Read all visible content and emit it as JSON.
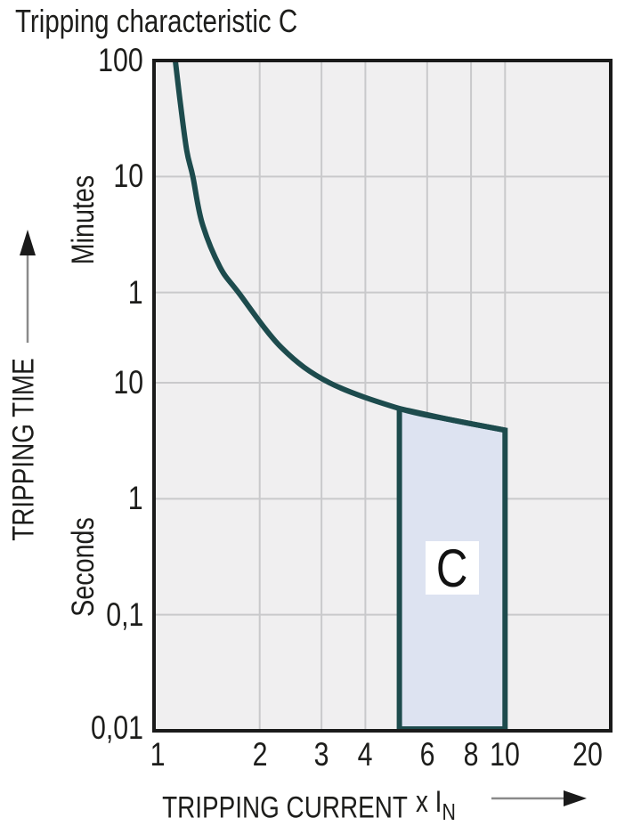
{
  "title": "Tripping characteristic C",
  "y_axis": {
    "label": "TRIPPING TIME",
    "unit_top": "Minutes",
    "unit_bottom": "Seconds"
  },
  "x_axis": {
    "label": "TRIPPING CURRENT",
    "multiplier": "x I",
    "multiplier_sub": "N"
  },
  "chart_data": {
    "type": "line",
    "title": "Tripping characteristic C",
    "xlabel": "TRIPPING CURRENT x IN",
    "ylabel": "TRIPPING TIME",
    "x_scale": "log",
    "y_scale": "log",
    "xlim": [
      1,
      20
    ],
    "ylim_seconds": [
      0.01,
      6000
    ],
    "grid": true,
    "x_ticks": [
      {
        "value": 1,
        "label": "1"
      },
      {
        "value": 2,
        "label": "2"
      },
      {
        "value": 3,
        "label": "3"
      },
      {
        "value": 4,
        "label": "4"
      },
      {
        "value": 6,
        "label": "6"
      },
      {
        "value": 8,
        "label": "8"
      },
      {
        "value": 10,
        "label": "10"
      },
      {
        "value": 20,
        "label": "20"
      }
    ],
    "y_ticks": [
      {
        "seconds": 6000,
        "label": "100",
        "unit": "Minutes"
      },
      {
        "seconds": 600,
        "label": "10",
        "unit": "Minutes"
      },
      {
        "seconds": 60,
        "label": "1",
        "unit": "Minutes"
      },
      {
        "seconds": 10,
        "label": "10",
        "unit": "Seconds"
      },
      {
        "seconds": 1,
        "label": "1",
        "unit": "Seconds"
      },
      {
        "seconds": 0.1,
        "label": "0,1",
        "unit": "Seconds"
      },
      {
        "seconds": 0.01,
        "label": "0,01",
        "unit": "Seconds"
      }
    ],
    "x_gridlines": [
      2,
      3,
      4,
      6,
      8,
      10
    ],
    "y_gridlines_seconds": [
      600,
      60,
      10,
      1,
      0.1
    ],
    "curve": {
      "name": "C tripping characteristic curve",
      "points_multiple_of_In_vs_time_s": [
        [
          1.14,
          7500
        ],
        [
          1.15,
          6000
        ],
        [
          1.19,
          2500
        ],
        [
          1.24,
          1000
        ],
        [
          1.29,
          600
        ],
        [
          1.37,
          240
        ],
        [
          1.54,
          100
        ],
        [
          1.74,
          60
        ],
        [
          2.31,
          20
        ],
        [
          3.16,
          10
        ],
        [
          5.0,
          6
        ],
        [
          7.0,
          4.8
        ],
        [
          10.0,
          3.9
        ]
      ]
    },
    "tolerance_band": {
      "label": "C",
      "x_range_multiple_of_In": [
        5,
        10
      ],
      "top_edge_time_s": [
        [
          5.0,
          6
        ],
        [
          7.0,
          4.8
        ],
        [
          10.0,
          3.9
        ]
      ],
      "bottom_time_s": 0.01
    },
    "colors": {
      "curve": "#1d4b4d",
      "band_fill": "#dde3f1",
      "plot_bg": "#f0eff0",
      "grid": "#c9c9cb",
      "frame": "#1a1a1a",
      "text": "#1d1d1b",
      "arrow_line": "#8a8a8a",
      "arrow_head": "#1a1a1a"
    }
  }
}
